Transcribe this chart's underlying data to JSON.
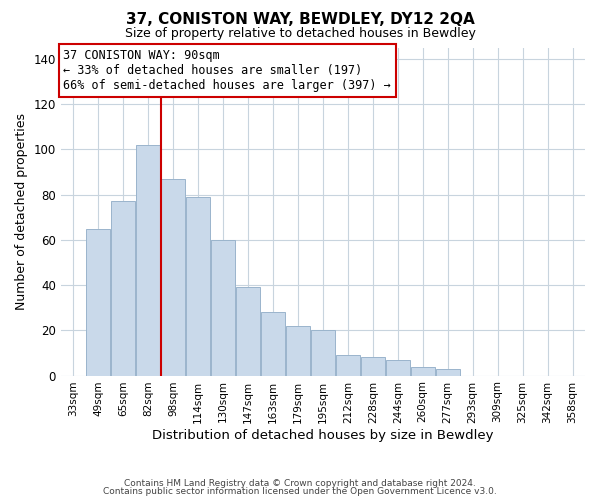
{
  "title": "37, CONISTON WAY, BEWDLEY, DY12 2QA",
  "subtitle": "Size of property relative to detached houses in Bewdley",
  "xlabel": "Distribution of detached houses by size in Bewdley",
  "ylabel": "Number of detached properties",
  "bar_color": "#c9d9ea",
  "bar_edgecolor": "#9ab4cc",
  "marker_line_color": "#cc0000",
  "categories": [
    "33sqm",
    "49sqm",
    "65sqm",
    "82sqm",
    "98sqm",
    "114sqm",
    "130sqm",
    "147sqm",
    "163sqm",
    "179sqm",
    "195sqm",
    "212sqm",
    "228sqm",
    "244sqm",
    "260sqm",
    "277sqm",
    "293sqm",
    "309sqm",
    "325sqm",
    "342sqm",
    "358sqm"
  ],
  "values": [
    0,
    65,
    77,
    102,
    87,
    79,
    60,
    39,
    28,
    22,
    20,
    9,
    8,
    7,
    4,
    3,
    0,
    0,
    0,
    0,
    0
  ],
  "ylim": [
    0,
    145
  ],
  "yticks": [
    0,
    20,
    40,
    60,
    80,
    100,
    120,
    140
  ],
  "annotation_title": "37 CONISTON WAY: 90sqm",
  "annotation_line1": "← 33% of detached houses are smaller (197)",
  "annotation_line2": "66% of semi-detached houses are larger (397) →",
  "footer_line1": "Contains HM Land Registry data © Crown copyright and database right 2024.",
  "footer_line2": "Contains public sector information licensed under the Open Government Licence v3.0.",
  "background_color": "#ffffff",
  "grid_color": "#c8d4de"
}
